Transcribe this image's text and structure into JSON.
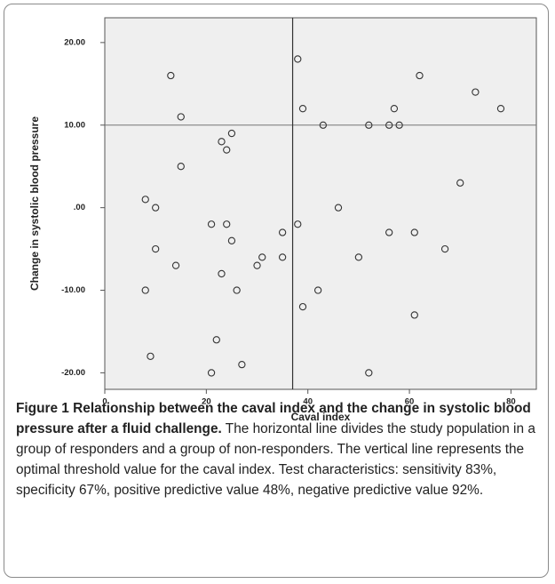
{
  "chart_data": {
    "type": "scatter",
    "x_label": "Caval index",
    "y_label": "Change in systolic blood pressure",
    "xlim": [
      0,
      85
    ],
    "ylim": [
      -22,
      23
    ],
    "xticks": [
      0,
      20,
      40,
      60,
      80
    ],
    "yticks": [
      {
        "value": 20,
        "label": "20.00"
      },
      {
        "value": 10,
        "label": "10.00"
      },
      {
        "value": 0,
        "label": ".00"
      },
      {
        "value": -10,
        "label": "-10.00"
      },
      {
        "value": -20,
        "label": "-20.00"
      }
    ],
    "reference_lines": {
      "x": 37,
      "y": 10
    },
    "color": "#333333",
    "x": [
      13,
      15,
      15,
      23,
      25,
      24,
      8,
      10,
      10,
      14,
      8,
      9,
      21,
      24,
      25,
      23,
      26,
      22,
      21,
      27,
      35,
      35,
      31,
      30,
      38,
      39,
      43,
      38,
      39,
      42,
      46,
      52,
      56,
      57,
      58,
      62,
      56,
      61,
      50,
      61,
      52,
      67,
      70,
      73,
      78
    ],
    "values": [
      16,
      11,
      5,
      8,
      9,
      7,
      1,
      0,
      -5,
      -7,
      -10,
      -18,
      -2,
      -2,
      -4,
      -8,
      -10,
      -16,
      -20,
      -19,
      -3,
      -6,
      -6,
      -7,
      18,
      12,
      10,
      -2,
      -12,
      -10,
      0,
      10,
      10,
      12,
      10,
      16,
      -3,
      -3,
      -6,
      -13,
      -20,
      -5,
      3,
      14,
      12
    ]
  },
  "caption": {
    "title": "Figure 1 Relationship between the caval index and the change in systolic blood pressure after a fluid challenge.",
    "text": "The horizontal line divides the study population in a group of responders and a group of non-responders. The vertical line represents the optimal threshold value for the caval index. Test characteristics: sensitivity 83%, specificity 67%, positive predictive value 48%, negative predictive value 92%."
  }
}
